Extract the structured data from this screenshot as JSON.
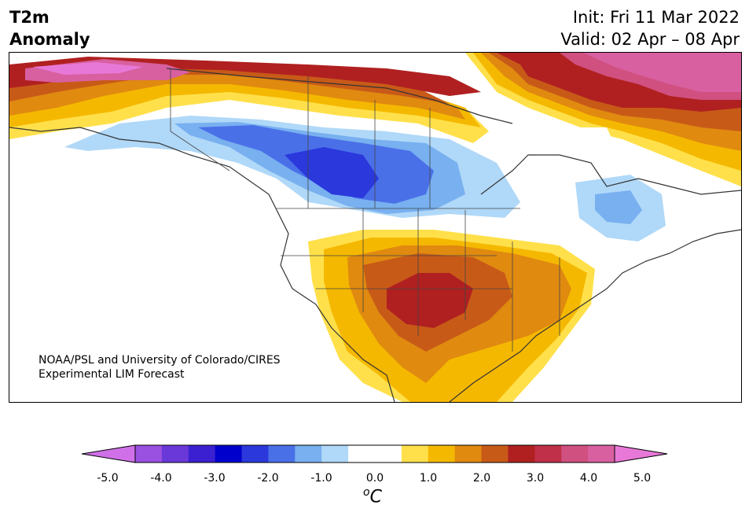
{
  "title": {
    "line1": "T2m",
    "line2": "Anomaly"
  },
  "init_text": "Init: Fri 11 Mar 2022",
  "valid_text": "Valid: 02 Apr – 08 Apr",
  "credit": {
    "line1": "NOAA/PSL and University of Colorado/CIRES",
    "line2": "Experimental LIM Forecast"
  },
  "colorbar": {
    "ticks": [
      "-5.0",
      "-4.0",
      "-3.0",
      "-2.0",
      "-1.0",
      "0.0",
      "1.0",
      "2.0",
      "3.0",
      "4.0",
      "5.0"
    ],
    "unit_base": "C",
    "unit_sup": "o",
    "min": -5.0,
    "max": 5.0,
    "step": 0.5,
    "extend": "both",
    "colors": [
      "#d070e8",
      "#9a50e0",
      "#6a38d8",
      "#3a20d0",
      "#0000cc",
      "#2a38dc",
      "#4a70e8",
      "#78b0f0",
      "#b0d8f8",
      "#ffffff",
      "#ffffff",
      "#ffe04a",
      "#f5b800",
      "#e08a10",
      "#c85a18",
      "#b02020",
      "#c03048",
      "#d05080",
      "#d860a0",
      "#e878d8"
    ]
  },
  "map_colors": {
    "land_outline": "#333333",
    "blue_light": "#b0d8f8",
    "blue_mid": "#78b0f0",
    "blue_dark": "#4a70e8",
    "blue_deep": "#2a38dc",
    "yellow": "#ffe04a",
    "gold": "#f5b800",
    "orange": "#e08a10",
    "orange_dark": "#c85a18",
    "red": "#b02020",
    "pink_red": "#c03048",
    "pink": "#d860a0",
    "magenta": "#e878d8"
  }
}
